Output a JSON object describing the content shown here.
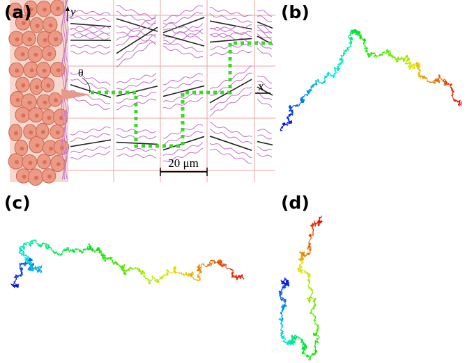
{
  "panels": [
    {
      "label": "(a)",
      "axis_y": "y",
      "angle": "θ",
      "axis_x": "x",
      "scale_bar": "20 μm"
    },
    {
      "label": "(b)"
    },
    {
      "label": "(c)"
    },
    {
      "label": "(d)"
    }
  ]
}
